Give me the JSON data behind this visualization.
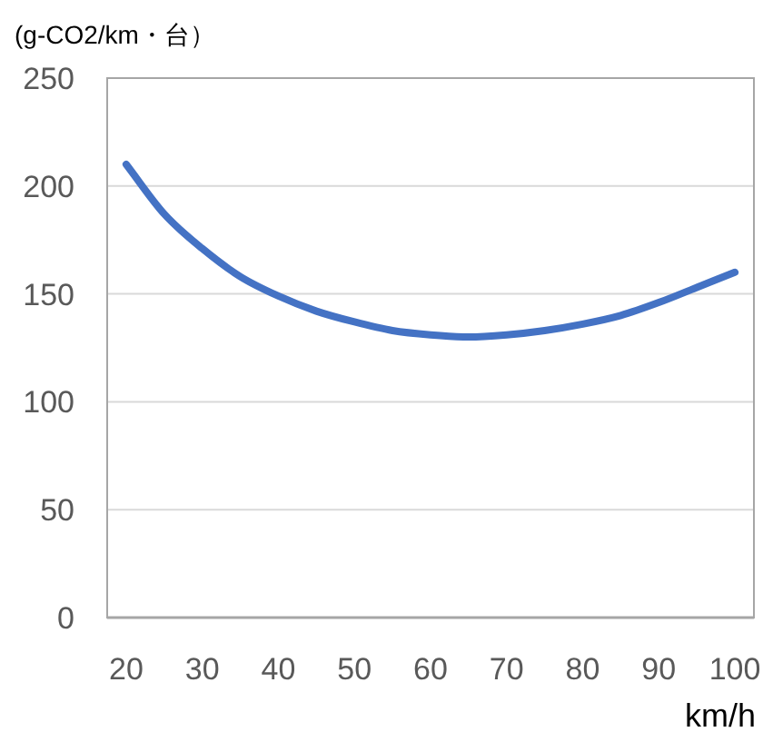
{
  "chart_data": {
    "type": "line",
    "ylabel": "(g-CO2/km・台）",
    "xlabel": "km/h",
    "categories": [
      "20",
      null,
      "30",
      null,
      "40",
      null,
      "50",
      null,
      "60",
      null,
      "70",
      null,
      "80",
      null,
      "90",
      null,
      "100"
    ],
    "series": [
      {
        "color": "#4472c4",
        "values": [
          210,
          187,
          171,
          158,
          149,
          142,
          137,
          133,
          131,
          130,
          131,
          133,
          136,
          140,
          146,
          153,
          160
        ]
      }
    ],
    "ylim": [
      0,
      250
    ],
    "yticks": [
      0,
      50,
      100,
      150,
      200,
      250
    ],
    "grid": "y",
    "marker": "none",
    "line_style": "solid"
  }
}
